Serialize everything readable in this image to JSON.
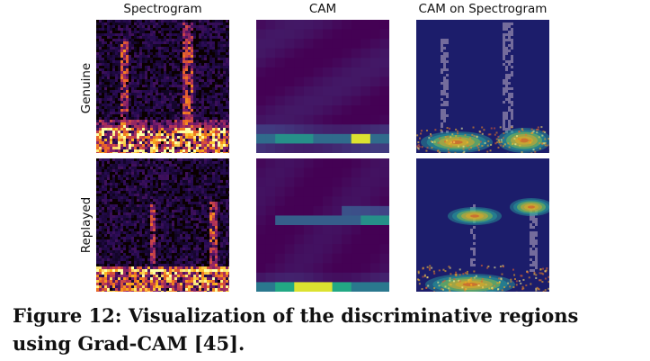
{
  "figure": {
    "column_titles": [
      "Spectrogram",
      "CAM",
      "CAM on Spectrogram"
    ],
    "row_labels": [
      "Genuine",
      "Replayed"
    ],
    "caption": "Figure 12: Visualization of the discriminative regions using Grad-CAM [45]."
  },
  "colors": {
    "cam_low": "#440154",
    "cam_mid": "#26828e",
    "cam_high": "#fde725",
    "spec_low": "#000000",
    "spec_high": "#fcffa4",
    "overlay_base": "#1c1d6b"
  }
}
